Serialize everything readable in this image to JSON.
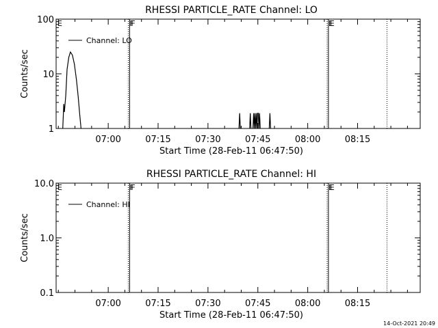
{
  "chart_data": [
    {
      "type": "line",
      "title": "RHESSI PARTICLE_RATE Channel: LO",
      "xlabel": "Start Time (28-Feb-11 06:47:50)",
      "ylabel": "Counts/sec",
      "yscale": "log",
      "ylim": [
        1,
        100
      ],
      "ytick_labels": [
        "1",
        "10",
        "100"
      ],
      "ytick_values": [
        1,
        10,
        100
      ],
      "xlim_minutes_after_start": [
        -3.5,
        106
      ],
      "xtick_labels": [
        "07:00",
        "07:15",
        "07:30",
        "07:45",
        "08:00",
        "08:15"
      ],
      "xtick_minutes_after_start": [
        12.17,
        27.17,
        42.17,
        57.17,
        72.17,
        87.17
      ],
      "legend": {
        "label": "Channel: LO",
        "placement": "top-left"
      },
      "grid": false,
      "region_markers": [
        {
          "label": "E",
          "minutes_after_start": -3.5,
          "style": "solid"
        },
        {
          "label": "F",
          "minutes_after_start": 18.2,
          "style": "dotted"
        },
        {
          "label": "F",
          "minutes_after_start": 18.6,
          "style": "solid"
        },
        {
          "label": "E",
          "minutes_after_start": 78.0,
          "style": "dotted"
        },
        {
          "label": "E",
          "minutes_after_start": 78.4,
          "style": "solid"
        },
        {
          "label": "",
          "minutes_after_start": 96.0,
          "style": "dotted"
        }
      ],
      "series": [
        {
          "name": "Channel: LO",
          "segments": [
            [
              [
                -1.5,
                1.0
              ],
              [
                -1.2,
                2.8
              ],
              [
                -1.0,
                2.0
              ],
              [
                -0.6,
                4.0
              ],
              [
                -0.2,
                12.0
              ],
              [
                0.3,
                20.0
              ],
              [
                0.8,
                25.0
              ],
              [
                1.4,
                22.0
              ],
              [
                2.0,
                15.0
              ],
              [
                2.6,
                8.0
              ],
              [
                3.1,
                4.0
              ],
              [
                3.6,
                1.8
              ],
              [
                4.0,
                1.0
              ]
            ],
            [
              [
                51.5,
                1.0
              ],
              [
                51.7,
                1.9
              ],
              [
                51.9,
                1.0
              ]
            ],
            [
              [
                54.7,
                1.0
              ],
              [
                54.9,
                1.9
              ],
              [
                55.1,
                1.0
              ]
            ],
            [
              [
                55.7,
                1.0
              ],
              [
                55.9,
                1.9
              ],
              [
                56.1,
                1.0
              ],
              [
                56.3,
                1.9
              ],
              [
                56.5,
                1.0
              ],
              [
                56.7,
                1.9
              ],
              [
                56.9,
                1.0
              ],
              [
                57.1,
                1.9
              ],
              [
                57.3,
                1.9
              ],
              [
                57.5,
                1.0
              ],
              [
                57.7,
                1.9
              ],
              [
                57.9,
                1.0
              ]
            ],
            [
              [
                60.6,
                1.0
              ],
              [
                60.8,
                1.9
              ],
              [
                61.0,
                1.0
              ]
            ]
          ]
        }
      ]
    },
    {
      "type": "line",
      "title": "RHESSI PARTICLE_RATE Channel: HI",
      "xlabel": "Start Time (28-Feb-11 06:47:50)",
      "ylabel": "Counts/sec",
      "yscale": "log",
      "ylim": [
        0.1,
        10
      ],
      "ytick_labels": [
        "0.1",
        "1.0",
        "10.0"
      ],
      "ytick_values": [
        0.1,
        1,
        10
      ],
      "xlim_minutes_after_start": [
        -3.5,
        106
      ],
      "xtick_labels": [
        "07:00",
        "07:15",
        "07:30",
        "07:45",
        "08:00",
        "08:15"
      ],
      "xtick_minutes_after_start": [
        12.17,
        27.17,
        42.17,
        57.17,
        72.17,
        87.17
      ],
      "legend": {
        "label": "Channel: HI",
        "placement": "top-left"
      },
      "grid": false,
      "region_markers": [
        {
          "label": "E",
          "minutes_after_start": -3.5,
          "style": "solid"
        },
        {
          "label": "F",
          "minutes_after_start": 18.2,
          "style": "dotted"
        },
        {
          "label": "F",
          "minutes_after_start": 18.6,
          "style": "solid"
        },
        {
          "label": "E",
          "minutes_after_start": 78.0,
          "style": "dotted"
        },
        {
          "label": "E",
          "minutes_after_start": 78.4,
          "style": "solid"
        },
        {
          "label": "",
          "minutes_after_start": 96.0,
          "style": "dotted"
        }
      ],
      "series": [
        {
          "name": "Channel: HI",
          "segments": []
        }
      ]
    }
  ],
  "footer": {
    "stamp": "14-Oct-2021 20:49"
  }
}
